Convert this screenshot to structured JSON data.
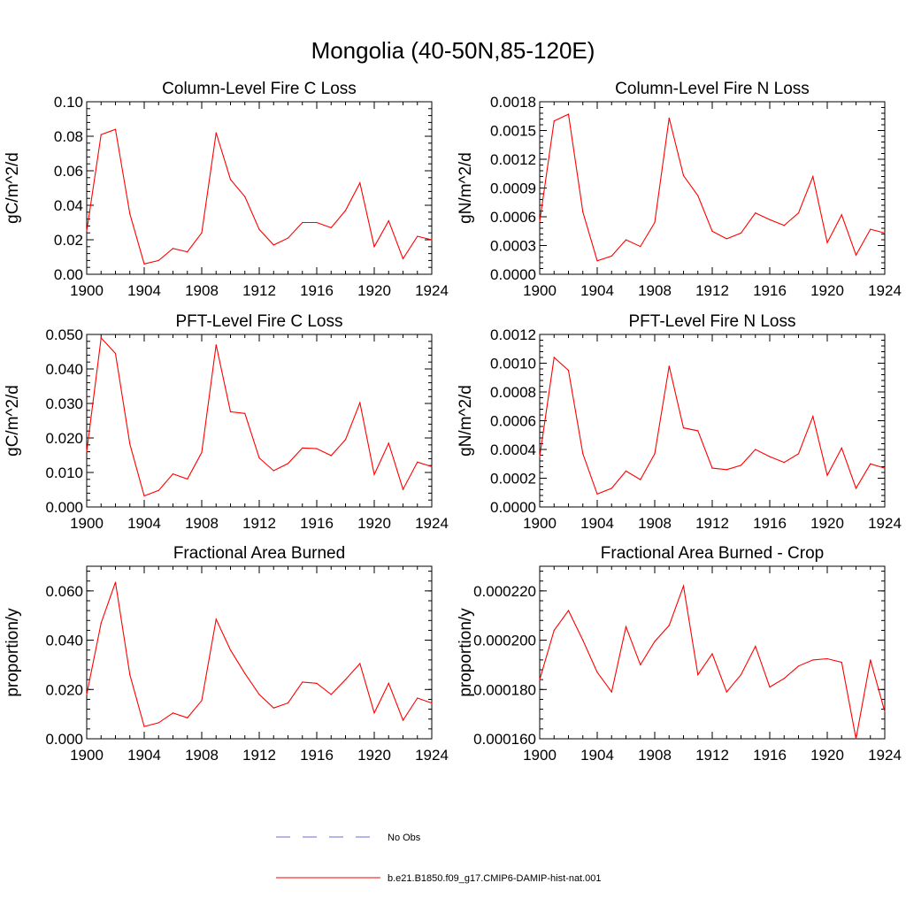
{
  "figure": {
    "title": "Mongolia (40-50N,85-120E)",
    "legend": [
      {
        "label": "No Obs",
        "color": "#6b6bd6",
        "style": "dashed"
      },
      {
        "label": "b.e21.B1850.f09_g17.CMIP6-DAMIP-hist-nat.001",
        "color": "#ff0000",
        "style": "solid"
      }
    ]
  },
  "chart_data": [
    {
      "type": "line",
      "title": "Column-Level Fire C Loss",
      "ylabel": "gC/m^2/d",
      "xlim": [
        1900,
        1924
      ],
      "ylim": [
        0,
        0.1
      ],
      "xticks": [
        "1900",
        "1904",
        "1908",
        "1912",
        "1916",
        "1920",
        "1924"
      ],
      "yticks": [
        "0.00",
        "0.02",
        "0.04",
        "0.06",
        "0.08",
        "0.10"
      ],
      "x": [
        1900,
        1901,
        1902,
        1903,
        1904,
        1905,
        1906,
        1907,
        1908,
        1909,
        1910,
        1911,
        1912,
        1913,
        1914,
        1915,
        1916,
        1917,
        1918,
        1919,
        1920,
        1921,
        1922,
        1923,
        1924
      ],
      "series": [
        {
          "color": "#ff0000",
          "values": [
            0.025,
            0.081,
            0.084,
            0.035,
            0.006,
            0.008,
            0.015,
            0.013,
            0.024,
            0.082,
            0.055,
            0.045,
            0.026,
            0.017,
            0.021,
            0.03,
            0.03,
            0.027,
            0.037,
            0.053,
            0.016,
            0.031,
            0.009,
            0.022,
            0.02
          ]
        }
      ]
    },
    {
      "type": "line",
      "title": "Column-Level Fire N Loss",
      "ylabel": "gN/m^2/d",
      "xlim": [
        1900,
        1924
      ],
      "ylim": [
        0,
        0.0018
      ],
      "xticks": [
        "1900",
        "1904",
        "1908",
        "1912",
        "1916",
        "1920",
        "1924"
      ],
      "yticks": [
        "0.0000",
        "0.0003",
        "0.0006",
        "0.0009",
        "0.0012",
        "0.0015",
        "0.0018"
      ],
      "x": [
        1900,
        1901,
        1902,
        1903,
        1904,
        1905,
        1906,
        1907,
        1908,
        1909,
        1910,
        1911,
        1912,
        1913,
        1914,
        1915,
        1916,
        1917,
        1918,
        1919,
        1920,
        1921,
        1922,
        1923,
        1924
      ],
      "series": [
        {
          "color": "#ff0000",
          "values": [
            0.00055,
            0.0016,
            0.00167,
            0.00065,
            0.00014,
            0.00019,
            0.00036,
            0.00029,
            0.00054,
            0.00163,
            0.00103,
            0.00082,
            0.00045,
            0.00037,
            0.00043,
            0.00064,
            0.00057,
            0.00051,
            0.00064,
            0.00102,
            0.00033,
            0.00062,
            0.0002,
            0.00047,
            0.00043
          ]
        }
      ]
    },
    {
      "type": "line",
      "title": "PFT-Level Fire C Loss",
      "ylabel": "gC/m^2/d",
      "xlim": [
        1900,
        1924
      ],
      "ylim": [
        0,
        0.05
      ],
      "xticks": [
        "1900",
        "1904",
        "1908",
        "1912",
        "1916",
        "1920",
        "1924"
      ],
      "yticks": [
        "0.000",
        "0.010",
        "0.020",
        "0.030",
        "0.040",
        "0.050"
      ],
      "x": [
        1900,
        1901,
        1902,
        1903,
        1904,
        1905,
        1906,
        1907,
        1908,
        1909,
        1910,
        1911,
        1912,
        1913,
        1914,
        1915,
        1916,
        1917,
        1918,
        1919,
        1920,
        1921,
        1922,
        1923,
        1924
      ],
      "series": [
        {
          "color": "#ff0000",
          "values": [
            0.016,
            0.049,
            0.0445,
            0.0182,
            0.0032,
            0.0048,
            0.0096,
            0.0081,
            0.0158,
            0.047,
            0.0276,
            0.0271,
            0.0142,
            0.0105,
            0.0126,
            0.0171,
            0.0169,
            0.0149,
            0.0195,
            0.0302,
            0.0094,
            0.0185,
            0.0051,
            0.013,
            0.0117
          ]
        }
      ]
    },
    {
      "type": "line",
      "title": "PFT-Level Fire N Loss",
      "ylabel": "gN/m^2/d",
      "xlim": [
        1900,
        1924
      ],
      "ylim": [
        0,
        0.0012
      ],
      "xticks": [
        "1900",
        "1904",
        "1908",
        "1912",
        "1916",
        "1920",
        "1924"
      ],
      "yticks": [
        "0.0000",
        "0.0002",
        "0.0004",
        "0.0006",
        "0.0008",
        "0.0010",
        "0.0012"
      ],
      "x": [
        1900,
        1901,
        1902,
        1903,
        1904,
        1905,
        1906,
        1907,
        1908,
        1909,
        1910,
        1911,
        1912,
        1913,
        1914,
        1915,
        1916,
        1917,
        1918,
        1919,
        1920,
        1921,
        1922,
        1923,
        1924
      ],
      "series": [
        {
          "color": "#ff0000",
          "values": [
            0.00035,
            0.00104,
            0.00095,
            0.00037,
            9e-05,
            0.00013,
            0.00025,
            0.00019,
            0.00037,
            0.00098,
            0.00055,
            0.00053,
            0.00027,
            0.00026,
            0.00029,
            0.0004,
            0.00035,
            0.00031,
            0.00037,
            0.00063,
            0.00022,
            0.00041,
            0.00013,
            0.0003,
            0.00027
          ]
        }
      ]
    },
    {
      "type": "line",
      "title": "Fractional Area Burned",
      "ylabel": "proportion/y",
      "xlim": [
        1900,
        1924
      ],
      "ylim": [
        0,
        0.07
      ],
      "xticks": [
        "1900",
        "1904",
        "1908",
        "1912",
        "1916",
        "1920",
        "1924"
      ],
      "yticks": [
        "0.000",
        "0.020",
        "0.040",
        "0.060"
      ],
      "ytick_values": [
        0,
        0.02,
        0.04,
        0.06
      ],
      "x": [
        1900,
        1901,
        1902,
        1903,
        1904,
        1905,
        1906,
        1907,
        1908,
        1909,
        1910,
        1911,
        1912,
        1913,
        1914,
        1915,
        1916,
        1917,
        1918,
        1919,
        1920,
        1921,
        1922,
        1923,
        1924
      ],
      "series": [
        {
          "color": "#ff0000",
          "values": [
            0.018,
            0.047,
            0.0635,
            0.026,
            0.005,
            0.0065,
            0.0105,
            0.0085,
            0.0155,
            0.0485,
            0.036,
            0.0265,
            0.018,
            0.0125,
            0.0145,
            0.023,
            0.0225,
            0.018,
            0.024,
            0.0305,
            0.0105,
            0.0225,
            0.0075,
            0.0165,
            0.0145
          ]
        }
      ]
    },
    {
      "type": "line",
      "title": "Fractional Area Burned - Crop",
      "ylabel": "proportion/y",
      "xlim": [
        1900,
        1924
      ],
      "ylim": [
        0.00016,
        0.00023
      ],
      "xticks": [
        "1900",
        "1904",
        "1908",
        "1912",
        "1916",
        "1920",
        "1924"
      ],
      "yticks": [
        "0.000160",
        "0.000180",
        "0.000200",
        "0.000220"
      ],
      "ytick_values": [
        0.00016,
        0.00018,
        0.0002,
        0.00022
      ],
      "x": [
        1900,
        1901,
        1902,
        1903,
        1904,
        1905,
        1906,
        1907,
        1908,
        1909,
        1910,
        1911,
        1912,
        1913,
        1914,
        1915,
        1916,
        1917,
        1918,
        1919,
        1920,
        1921,
        1922,
        1923,
        1924
      ],
      "series": [
        {
          "color": "#ff0000",
          "values": [
            0.000184,
            0.000204,
            0.000212,
            0.0002,
            0.000187,
            0.000179,
            0.0002055,
            0.00019,
            0.0001995,
            0.000206,
            0.000222,
            0.000186,
            0.0001945,
            0.000179,
            0.000186,
            0.0001975,
            0.000181,
            0.0001845,
            0.0001895,
            0.000192,
            0.0001925,
            0.000191,
            0.00016,
            0.000192,
            0.000171
          ]
        }
      ]
    }
  ]
}
